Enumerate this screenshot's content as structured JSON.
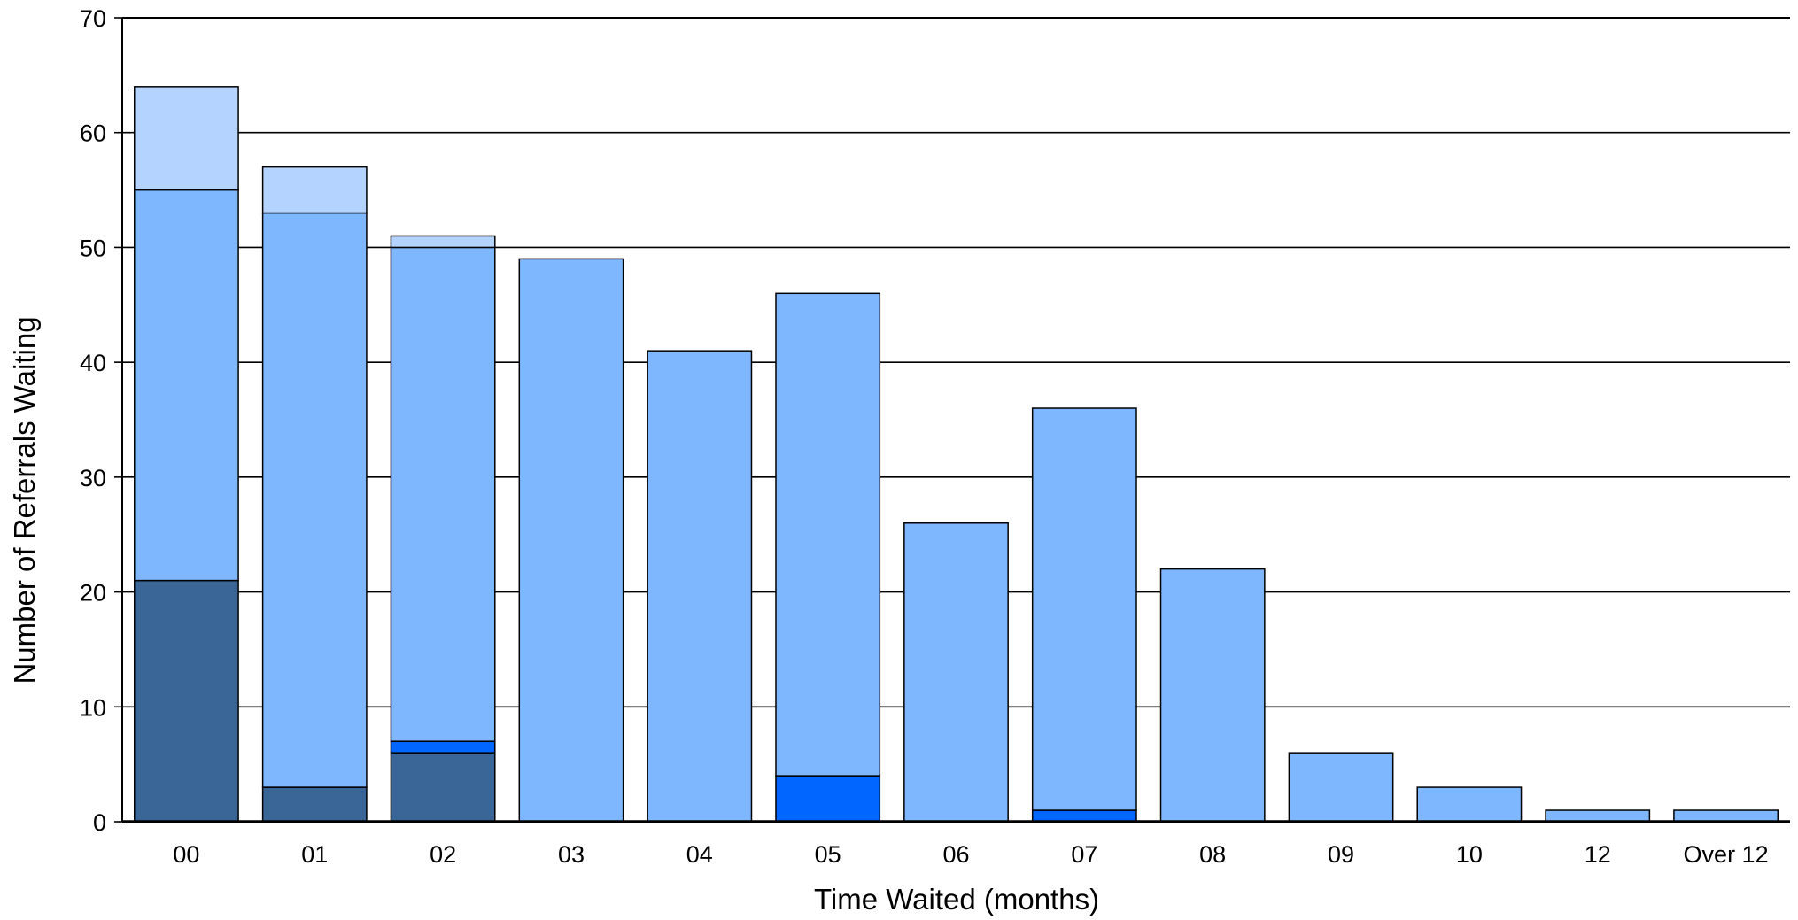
{
  "chart_data": {
    "type": "bar",
    "stacked": true,
    "title": "",
    "xlabel": "Time Waited (months)",
    "ylabel": "Number of Referrals Waiting",
    "ylim": [
      0,
      70
    ],
    "yticks": [
      0,
      10,
      20,
      30,
      40,
      50,
      60,
      70
    ],
    "grid": true,
    "legend": "none",
    "categories": [
      "00",
      "01",
      "02",
      "03",
      "04",
      "05",
      "06",
      "07",
      "08",
      "09",
      "10",
      "12",
      "Over 12"
    ],
    "series": [
      {
        "color": "#3a6697",
        "values": [
          21,
          3,
          6,
          0,
          0,
          0,
          0,
          0,
          0,
          0,
          0,
          0,
          0
        ]
      },
      {
        "color": "#0066ff",
        "values": [
          0,
          0,
          1,
          0,
          0,
          4,
          0,
          1,
          0,
          0,
          0,
          0,
          0
        ]
      },
      {
        "color": "#7fb7ff",
        "values": [
          34,
          50,
          43,
          49,
          41,
          42,
          26,
          35,
          22,
          6,
          3,
          1,
          1
        ]
      },
      {
        "color": "#b4d4ff",
        "values": [
          9,
          4,
          1,
          0,
          0,
          0,
          0,
          0,
          0,
          0,
          0,
          0,
          0
        ]
      }
    ]
  }
}
